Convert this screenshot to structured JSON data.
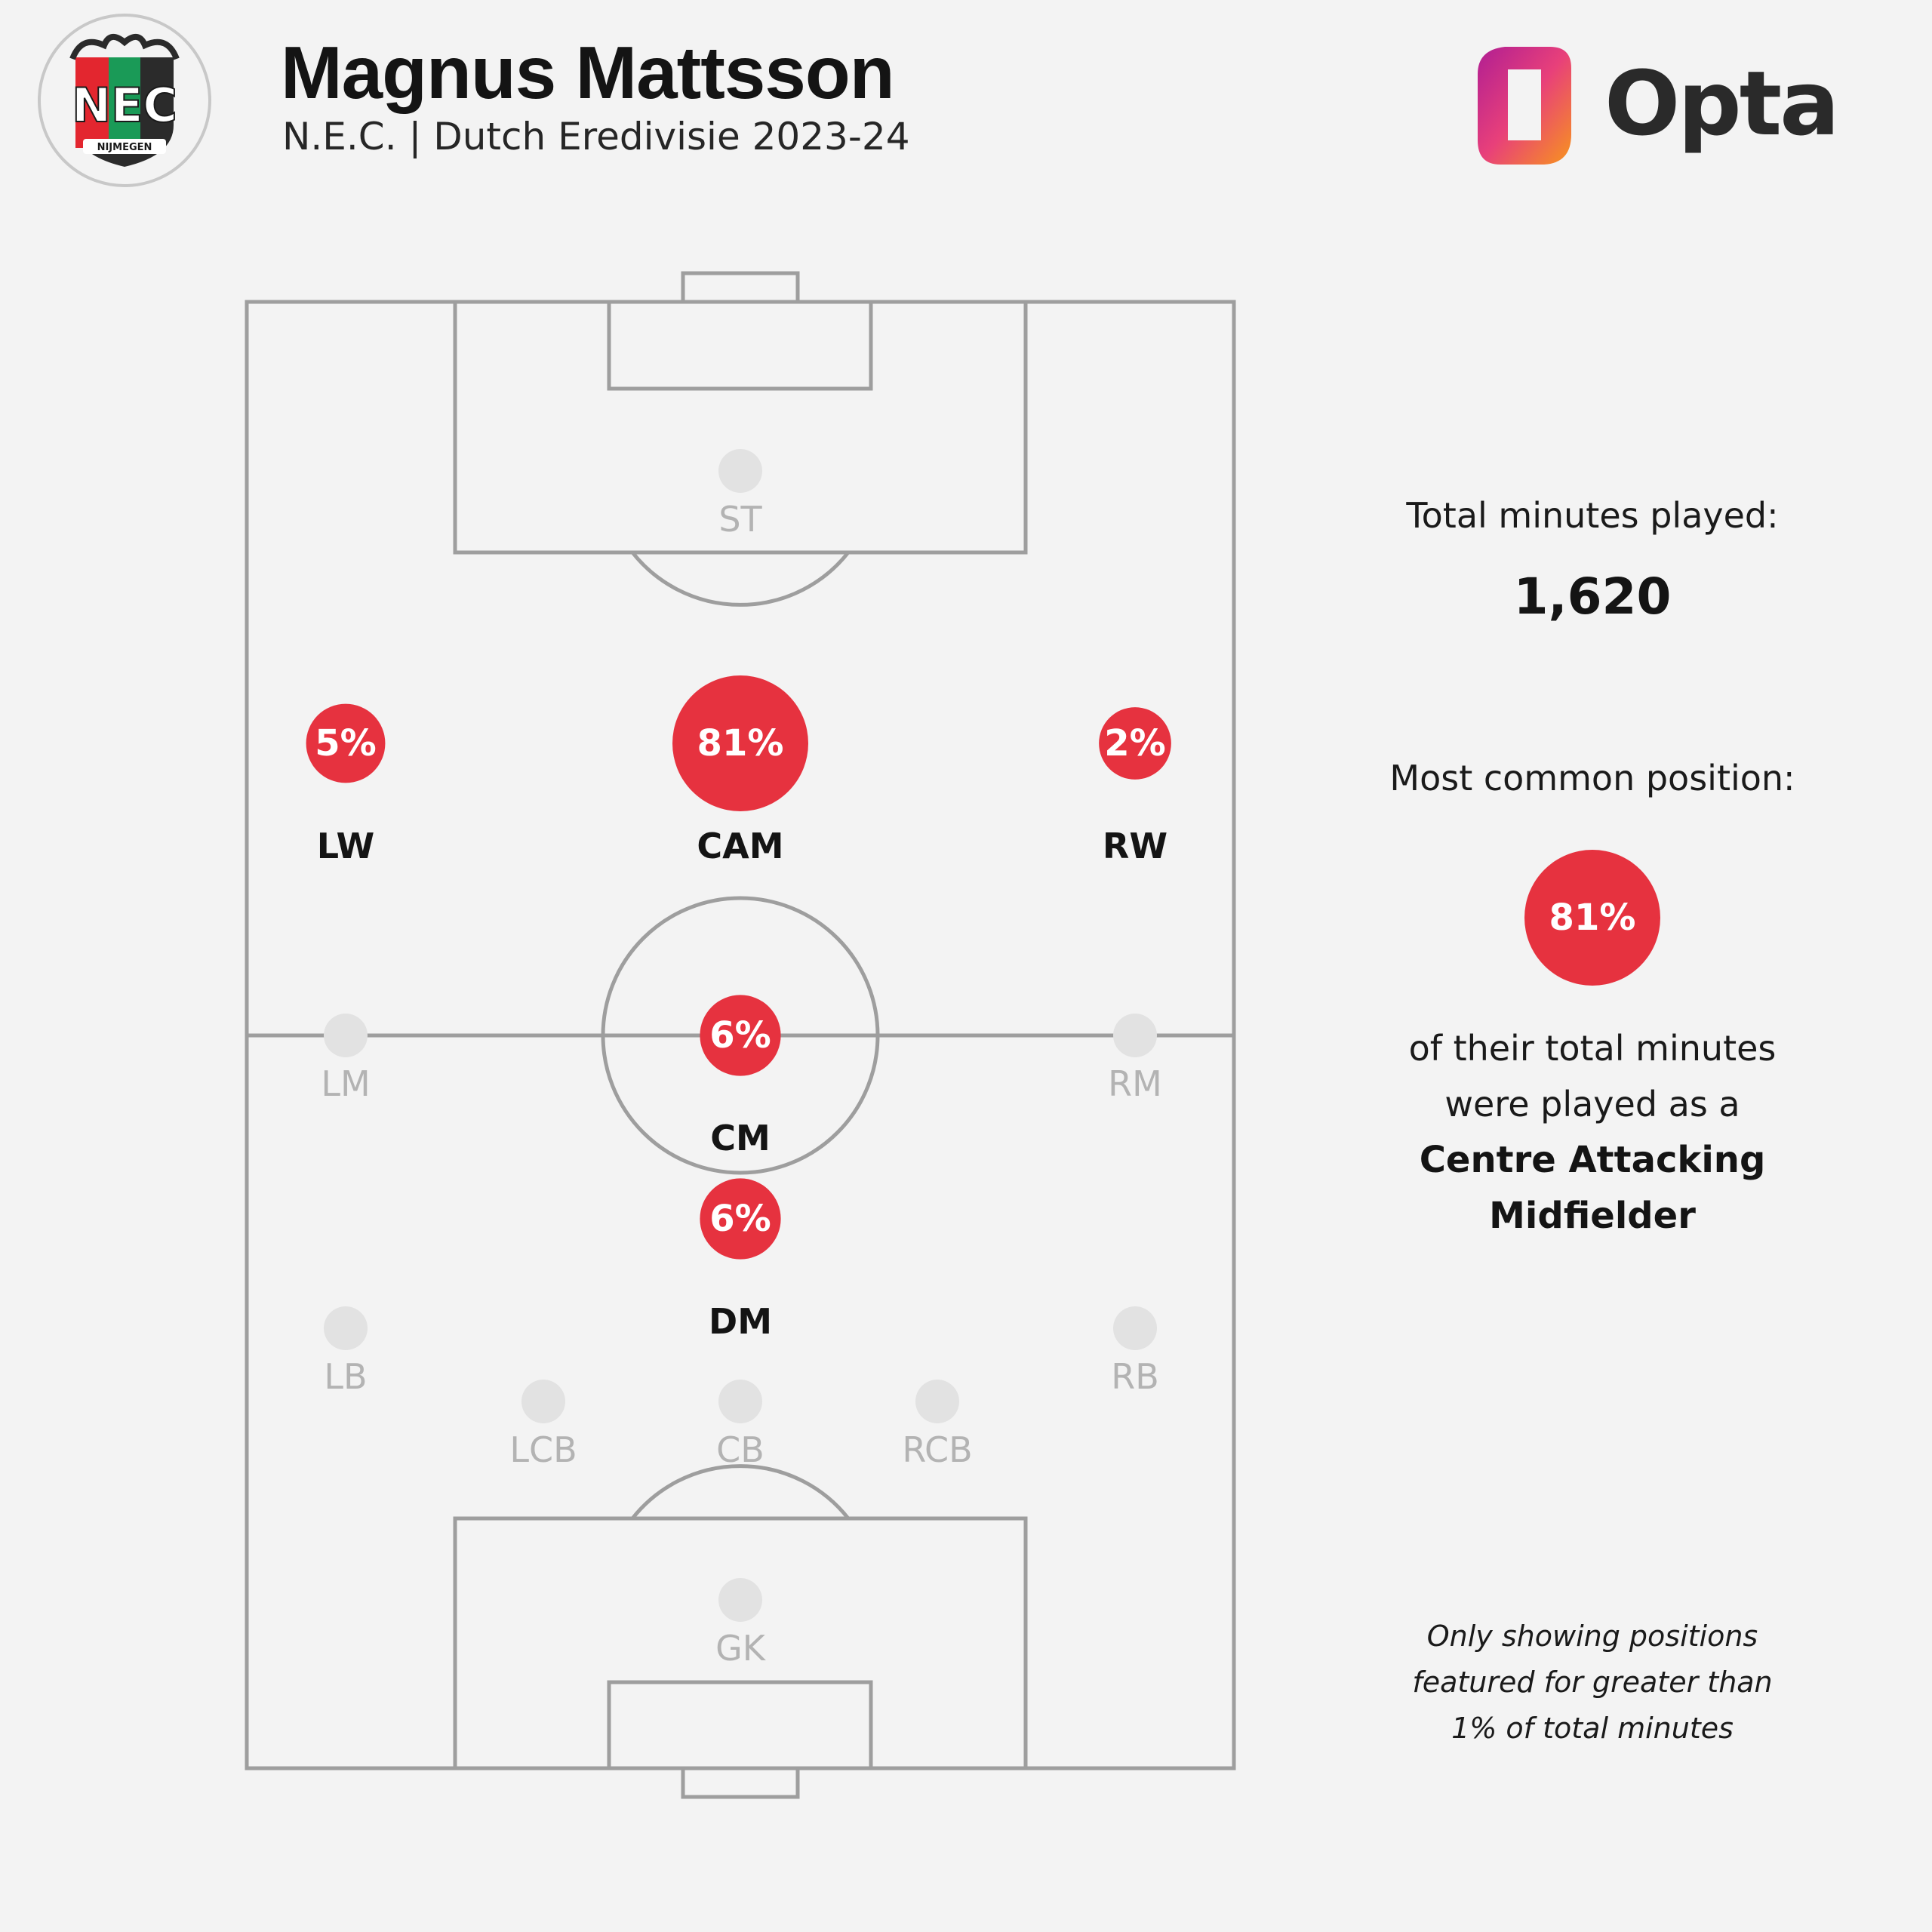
{
  "header": {
    "player_name": "Magnus Mattsson",
    "subtitle": "N.E.C. | Dutch Eredivisie 2023-24",
    "club_badge": {
      "text": "NEC",
      "subtext": "NIJMEGEN",
      "colors": [
        "#e3262f",
        "#1a9a57",
        "#2b2b2b"
      ]
    },
    "brand": {
      "name": "Opta",
      "gradient": [
        "#b01e93",
        "#e8407a",
        "#f7941d"
      ]
    }
  },
  "pitch": {
    "line_color": "#9e9e9e",
    "active_color": "#e6323f",
    "inactive_color": "#e2e2e2",
    "positions": [
      {
        "code": "ST",
        "pct": null,
        "active": false
      },
      {
        "code": "LW",
        "pct": 5,
        "label": "5%",
        "active": true
      },
      {
        "code": "CAM",
        "pct": 81,
        "label": "81%",
        "active": true
      },
      {
        "code": "RW",
        "pct": 2,
        "label": "2%",
        "active": true
      },
      {
        "code": "LM",
        "pct": null,
        "active": false
      },
      {
        "code": "CM",
        "pct": 6,
        "label": "6%",
        "active": true
      },
      {
        "code": "RM",
        "pct": null,
        "active": false
      },
      {
        "code": "DM",
        "pct": 6,
        "label": "6%",
        "active": true
      },
      {
        "code": "LB",
        "pct": null,
        "active": false
      },
      {
        "code": "RB",
        "pct": null,
        "active": false
      },
      {
        "code": "LCB",
        "pct": null,
        "active": false
      },
      {
        "code": "CB",
        "pct": null,
        "active": false
      },
      {
        "code": "RCB",
        "pct": null,
        "active": false
      },
      {
        "code": "GK",
        "pct": null,
        "active": false
      }
    ]
  },
  "summary": {
    "total_minutes_label": "Total minutes played:",
    "total_minutes_value": "1,620",
    "common_position_label": "Most common position:",
    "common_position_pct": "81%",
    "common_position_text_line1": "of their total minutes",
    "common_position_text_line2": "were played as a",
    "common_position_name_line1": "Centre Attacking",
    "common_position_name_line2": "Midfielder",
    "footnote_line1": "Only showing positions",
    "footnote_line2": "featured for greater than",
    "footnote_line3": "1% of total minutes"
  }
}
